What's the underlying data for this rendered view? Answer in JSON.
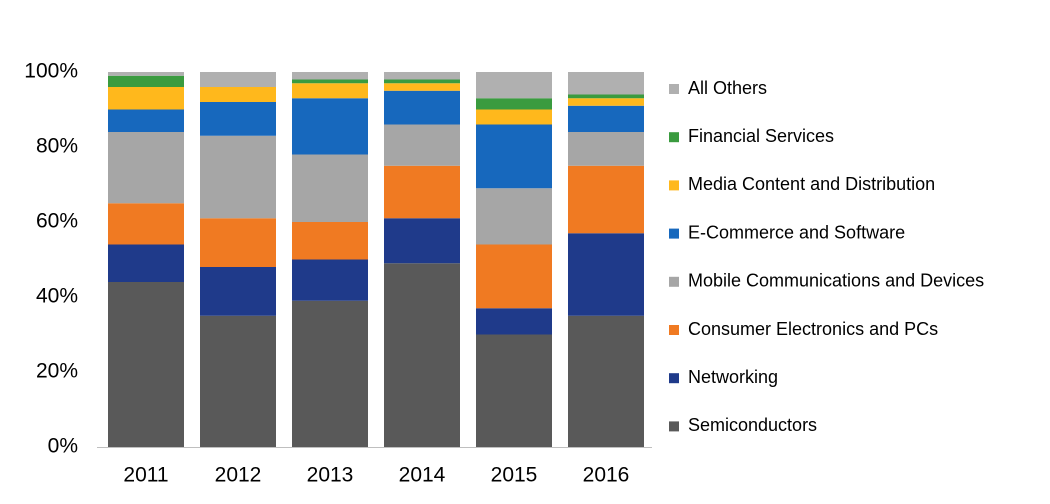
{
  "chart_data": {
    "type": "stacked_bar",
    "categories": [
      "2011",
      "2012",
      "2013",
      "2014",
      "2015",
      "2016"
    ],
    "series": [
      {
        "name": "Semiconductors",
        "color": "#595959",
        "values": [
          44,
          35,
          39,
          49,
          30,
          35
        ]
      },
      {
        "name": "Networking",
        "color": "#1f3a8a",
        "values": [
          10,
          13,
          11,
          12,
          7,
          22
        ]
      },
      {
        "name": "Consumer Electronics and PCs",
        "color": "#f07a22",
        "values": [
          11,
          13,
          10,
          14,
          17,
          18
        ]
      },
      {
        "name": "Mobile Communications and Devices",
        "color": "#a6a6a6",
        "values": [
          19,
          22,
          18,
          11,
          15,
          9
        ]
      },
      {
        "name": "E-Commerce and Software",
        "color": "#1768bd",
        "values": [
          6,
          9,
          15,
          9,
          17,
          7
        ]
      },
      {
        "name": "Media Content and Distribution",
        "color": "#ffb81c",
        "values": [
          6,
          4,
          4,
          2,
          4,
          2
        ]
      },
      {
        "name": "Financial Services",
        "color": "#3a9b3f",
        "values": [
          3,
          0,
          1,
          1,
          3,
          1
        ]
      },
      {
        "name": "All Others",
        "color": "#b0b0b0",
        "values": [
          1,
          4,
          2,
          2,
          7,
          6
        ]
      }
    ],
    "ylim": [
      0,
      100
    ],
    "yticks": [
      {
        "value": 0,
        "label": "0%"
      },
      {
        "value": 20,
        "label": "20%"
      },
      {
        "value": 40,
        "label": "40%"
      },
      {
        "value": 60,
        "label": "60%"
      },
      {
        "value": 80,
        "label": "80%"
      },
      {
        "value": 100,
        "label": "100%"
      }
    ],
    "legend": "right"
  }
}
